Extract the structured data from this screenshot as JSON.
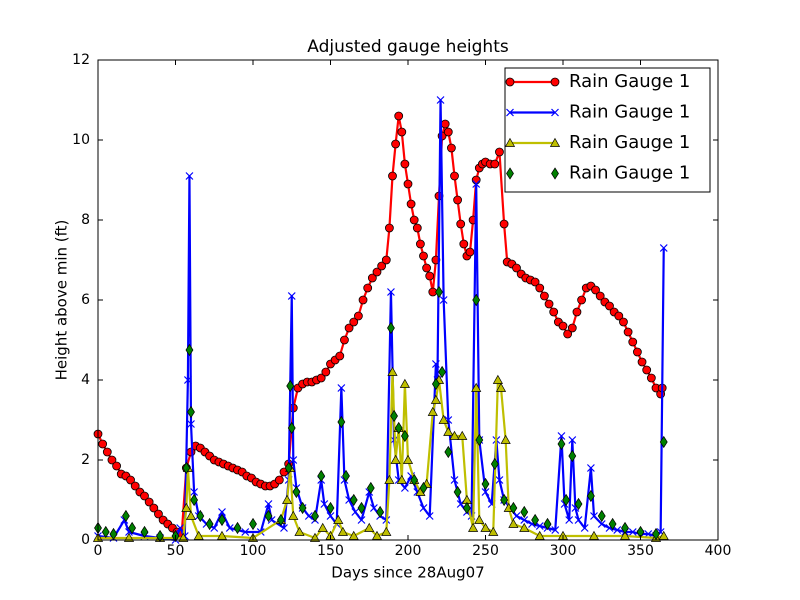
{
  "chart_data": {
    "type": "line",
    "title": "Adjusted gauge heights",
    "xlabel": "Days since 28Aug07",
    "ylabel": "Height above min (ft)",
    "xlim": [
      0,
      400
    ],
    "ylim": [
      0,
      12
    ],
    "xticks": [
      0,
      50,
      100,
      150,
      200,
      250,
      300,
      350,
      400
    ],
    "yticks": [
      0,
      2,
      4,
      6,
      8,
      10,
      12
    ],
    "grid": false,
    "legend": "upper right",
    "series": [
      {
        "name": "Rain Gauge 1",
        "color": "#ff0000",
        "marker": "circle",
        "line": true,
        "x": [
          0,
          3,
          6,
          9,
          12,
          15,
          18,
          21,
          24,
          27,
          30,
          33,
          36,
          39,
          42,
          45,
          48,
          51,
          54,
          57,
          60,
          63,
          66,
          69,
          72,
          75,
          78,
          81,
          84,
          87,
          90,
          93,
          96,
          99,
          102,
          105,
          108,
          111,
          114,
          117,
          120,
          123,
          126,
          129,
          132,
          135,
          138,
          141,
          144,
          147,
          150,
          153,
          156,
          159,
          162,
          165,
          168,
          171,
          174,
          177,
          180,
          183,
          186,
          188,
          190,
          192,
          194,
          196,
          198,
          200,
          202,
          204,
          206,
          208,
          210,
          212,
          214,
          216,
          218,
          220,
          222,
          224,
          226,
          228,
          230,
          232,
          234,
          236,
          238,
          240,
          242,
          244,
          246,
          248,
          250,
          253,
          256,
          259,
          262,
          264,
          267,
          270,
          273,
          276,
          279,
          282,
          285,
          288,
          291,
          294,
          297,
          300,
          303,
          306,
          309,
          312,
          315,
          318,
          321,
          324,
          327,
          330,
          333,
          336,
          339,
          342,
          345,
          348,
          351,
          354,
          357,
          360,
          363,
          364
        ],
        "values": [
          2.65,
          2.4,
          2.2,
          2.0,
          1.85,
          1.65,
          1.6,
          1.5,
          1.35,
          1.2,
          1.1,
          0.95,
          0.8,
          0.65,
          0.5,
          0.4,
          0.3,
          0.2,
          0.15,
          1.8,
          2.2,
          2.35,
          2.3,
          2.2,
          2.1,
          2.0,
          1.95,
          1.9,
          1.85,
          1.8,
          1.75,
          1.7,
          1.6,
          1.55,
          1.45,
          1.4,
          1.35,
          1.35,
          1.4,
          1.5,
          1.7,
          1.9,
          3.3,
          3.8,
          3.9,
          3.95,
          3.95,
          4.0,
          4.05,
          4.2,
          4.4,
          4.5,
          4.6,
          5.0,
          5.3,
          5.45,
          5.6,
          6.0,
          6.3,
          6.55,
          6.7,
          6.85,
          7.0,
          7.8,
          9.1,
          9.9,
          10.6,
          10.2,
          9.4,
          8.9,
          8.4,
          8.0,
          7.8,
          7.4,
          7.1,
          6.8,
          6.6,
          6.2,
          7.0,
          8.6,
          10.1,
          10.4,
          10.2,
          9.8,
          9.1,
          8.5,
          7.9,
          7.4,
          7.1,
          7.2,
          8.0,
          9.0,
          9.3,
          9.4,
          9.45,
          9.4,
          9.4,
          9.7,
          7.9,
          6.95,
          6.9,
          6.8,
          6.65,
          6.55,
          6.5,
          6.45,
          6.3,
          6.1,
          5.9,
          5.7,
          5.45,
          5.35,
          5.15,
          5.3,
          5.7,
          6.0,
          6.3,
          6.35,
          6.25,
          6.1,
          5.95,
          5.85,
          5.7,
          5.6,
          5.45,
          5.2,
          4.95,
          4.7,
          4.45,
          4.25,
          4.05,
          3.8,
          3.65,
          3.8
        ]
      },
      {
        "name": "Rain Gauge 1",
        "color": "#0000ff",
        "marker": "x",
        "line": true,
        "x": [
          0,
          10,
          17,
          20,
          30,
          40,
          50,
          53,
          56,
          58,
          59,
          60,
          62,
          65,
          70,
          75,
          80,
          85,
          95,
          105,
          110,
          112,
          120,
          123,
          125,
          126,
          128,
          132,
          136,
          140,
          144,
          146,
          150,
          154,
          157,
          159,
          162,
          166,
          170,
          175,
          178,
          182,
          186,
          189,
          191,
          194,
          198,
          202,
          206,
          210,
          214,
          218,
          219,
          221,
          223,
          226,
          230,
          234,
          238,
          241,
          244,
          246,
          250,
          254,
          257,
          259,
          262,
          266,
          270,
          275,
          280,
          285,
          290,
          295,
          299,
          301,
          304,
          306,
          308,
          310,
          314,
          318,
          320,
          325,
          330,
          335,
          340,
          345,
          350,
          355,
          360,
          363,
          365
        ],
        "values": [
          0.1,
          0.05,
          0.5,
          0.2,
          0.1,
          0.05,
          0.0,
          0.3,
          0.1,
          4.0,
          9.1,
          2.9,
          1.2,
          0.6,
          0.4,
          0.3,
          0.7,
          0.3,
          0.2,
          0.2,
          0.9,
          0.5,
          0.3,
          1.5,
          6.1,
          2.0,
          1.3,
          0.8,
          0.6,
          0.5,
          1.5,
          0.9,
          0.6,
          0.4,
          3.8,
          1.5,
          1.0,
          0.7,
          0.5,
          1.2,
          0.8,
          0.6,
          0.5,
          6.2,
          2.5,
          1.5,
          1.3,
          1.6,
          1.2,
          0.8,
          0.6,
          4.4,
          4.0,
          11.0,
          6.0,
          3.0,
          1.5,
          0.9,
          0.7,
          0.6,
          8.9,
          2.5,
          1.2,
          0.9,
          2.5,
          1.5,
          1.0,
          0.8,
          0.6,
          0.5,
          0.4,
          0.35,
          0.3,
          0.25,
          2.6,
          0.9,
          0.5,
          2.5,
          0.8,
          0.5,
          0.3,
          1.8,
          0.6,
          0.4,
          0.3,
          0.25,
          0.2,
          0.2,
          0.15,
          0.15,
          0.1,
          0.2,
          7.3
        ]
      },
      {
        "name": "Rain Gauge 1",
        "color": "#bfbf00",
        "marker": "triangle",
        "line": true,
        "x": [
          0,
          20,
          40,
          55,
          57,
          58,
          60,
          65,
          80,
          100,
          118,
          122,
          124,
          126,
          130,
          140,
          145,
          150,
          155,
          158,
          165,
          175,
          180,
          186,
          188,
          190,
          192,
          194,
          196,
          198,
          200,
          204,
          208,
          212,
          216,
          218,
          220,
          223,
          226,
          230,
          235,
          238,
          242,
          244,
          246,
          250,
          255,
          258,
          260,
          263,
          265,
          268,
          275,
          285,
          300,
          320,
          340,
          360,
          365
        ],
        "values": [
          0.05,
          0.05,
          0.05,
          0.05,
          0.8,
          1.8,
          0.6,
          0.1,
          0.1,
          0.05,
          0.5,
          1.0,
          1.8,
          0.6,
          0.2,
          0.05,
          0.3,
          0.1,
          0.5,
          0.2,
          0.1,
          0.3,
          0.1,
          0.2,
          1.5,
          4.2,
          2.0,
          2.8,
          1.5,
          3.9,
          2.0,
          1.5,
          1.2,
          1.4,
          3.2,
          3.5,
          4.0,
          3.0,
          2.7,
          2.6,
          2.6,
          1.0,
          0.3,
          3.8,
          0.5,
          0.3,
          0.2,
          4.0,
          3.8,
          2.5,
          0.8,
          0.4,
          0.3,
          0.1,
          0.1,
          0.1,
          0.1,
          0.05,
          0.1
        ]
      },
      {
        "name": "Rain Gauge 1",
        "color": "#008000",
        "marker": "diamond",
        "line": false,
        "x": [
          0,
          5,
          10,
          18,
          22,
          30,
          40,
          50,
          57,
          59,
          60,
          62,
          66,
          72,
          80,
          90,
          100,
          110,
          118,
          123,
          124,
          125,
          128,
          132,
          140,
          144,
          150,
          157,
          160,
          165,
          170,
          176,
          182,
          189,
          191,
          194,
          198,
          204,
          210,
          218,
          220,
          222,
          226,
          232,
          238,
          244,
          246,
          250,
          256,
          262,
          268,
          275,
          282,
          290,
          299,
          302,
          306,
          310,
          318,
          325,
          332,
          340,
          350,
          360,
          365
        ],
        "values": [
          0.3,
          0.2,
          0.15,
          0.6,
          0.3,
          0.2,
          0.1,
          0.1,
          1.8,
          4.75,
          3.2,
          1.0,
          0.6,
          0.4,
          0.5,
          0.3,
          0.4,
          0.6,
          0.5,
          1.8,
          3.85,
          2.8,
          1.2,
          0.8,
          0.6,
          1.6,
          0.8,
          2.95,
          1.6,
          1.0,
          0.8,
          1.3,
          0.7,
          5.3,
          3.1,
          2.8,
          2.6,
          1.5,
          1.3,
          3.9,
          6.2,
          4.2,
          2.2,
          1.2,
          0.8,
          6.0,
          2.5,
          1.4,
          1.9,
          1.0,
          0.8,
          0.7,
          0.5,
          0.4,
          2.4,
          1.0,
          2.1,
          0.9,
          1.1,
          0.6,
          0.4,
          0.3,
          0.2,
          0.15,
          2.45
        ]
      }
    ]
  }
}
